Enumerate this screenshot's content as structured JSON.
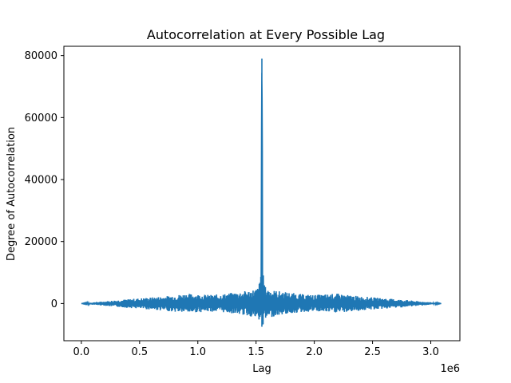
{
  "chart_data": {
    "type": "line",
    "title": "Autocorrelation at Every Possible Lag",
    "xlabel": "Lag",
    "ylabel": "Degree of Autocorrelation",
    "x_offset_label": "1e6",
    "xlim": [
      -150000,
      3250000
    ],
    "ylim": [
      -12000,
      83000
    ],
    "x_ticks": [
      0,
      500000,
      1000000,
      1500000,
      2000000,
      2500000,
      3000000
    ],
    "x_tick_labels": [
      "0.0",
      "0.5",
      "1.0",
      "1.5",
      "2.0",
      "2.5",
      "3.0"
    ],
    "y_ticks": [
      0,
      20000,
      40000,
      60000,
      80000
    ],
    "y_tick_labels": [
      "0",
      "20000",
      "40000",
      "60000",
      "80000"
    ],
    "grid": false,
    "series_color": "#1f77b4",
    "series": [
      {
        "x": [
          0,
          100000,
          200000,
          300000,
          400000,
          500000,
          600000,
          700000,
          800000,
          900000,
          1000000,
          1100000,
          1200000,
          1300000,
          1400000,
          1450000,
          1500000,
          1520000,
          1530000,
          1540000,
          1545000,
          1550000,
          1555000,
          1560000,
          1570000,
          1580000,
          1600000,
          1650000,
          1700000,
          1800000,
          1900000,
          2000000,
          2100000,
          2200000,
          2300000,
          2400000,
          2500000,
          2600000,
          2700000,
          2800000,
          2900000,
          3000000,
          3090000
        ],
        "y": [
          0,
          400,
          700,
          1100,
          1400,
          1700,
          2000,
          2300,
          2700,
          3200,
          3000,
          2800,
          3000,
          3500,
          4000,
          4300,
          4800,
          5500,
          7000,
          10000,
          40000,
          79000,
          40000,
          10000,
          7000,
          5500,
          4800,
          4300,
          4000,
          3500,
          3000,
          2800,
          3000,
          3200,
          2700,
          2300,
          2000,
          1700,
          1400,
          1100,
          700,
          400,
          0
        ],
        "y_min": [
          0,
          -400,
          -700,
          -1100,
          -1400,
          -1700,
          -2000,
          -2300,
          -2700,
          -3000,
          -2800,
          -2600,
          -2800,
          -3200,
          -3800,
          -4200,
          -5000,
          -5500,
          -6500,
          -7500,
          -7000,
          -4000,
          -7000,
          -7500,
          -6500,
          -5500,
          -5000,
          -4200,
          -3800,
          -3200,
          -2800,
          -2600,
          -2800,
          -3000,
          -2700,
          -2300,
          -2000,
          -1700,
          -1400,
          -1100,
          -700,
          -400,
          0
        ]
      }
    ]
  }
}
